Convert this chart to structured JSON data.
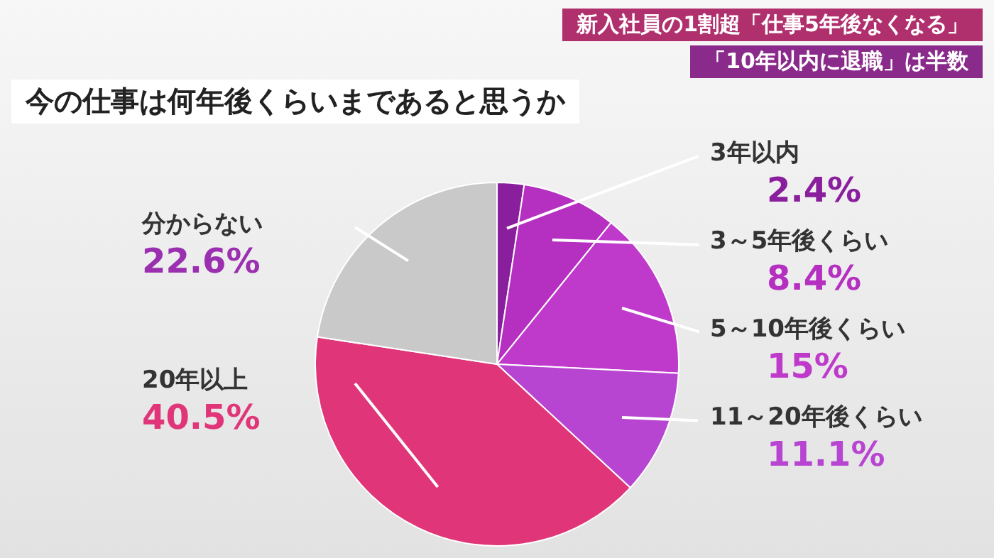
{
  "chart_data": {
    "type": "pie",
    "title": "今の仕事は何年後くらいまであると思うか",
    "annotations": [
      "新入社員の1割超「仕事5年後なくなる」",
      "「10年以内に退職」は半数"
    ],
    "categories": [
      "3年以内",
      "3～5年後くらい",
      "5～10年後くらい",
      "11～20年後くらい",
      "20年以上",
      "分からない"
    ],
    "values": [
      2.4,
      8.4,
      15,
      11.1,
      40.5,
      22.6
    ],
    "colors": [
      "#8a1f9e",
      "#b52fc0",
      "#bf3acb",
      "#b845d2",
      "#e03578",
      "#c9c9c9"
    ],
    "value_labels": [
      "2.4%",
      "8.4%",
      "15%",
      "11.1%",
      "40.5%",
      "22.6%"
    ],
    "legend": false
  }
}
